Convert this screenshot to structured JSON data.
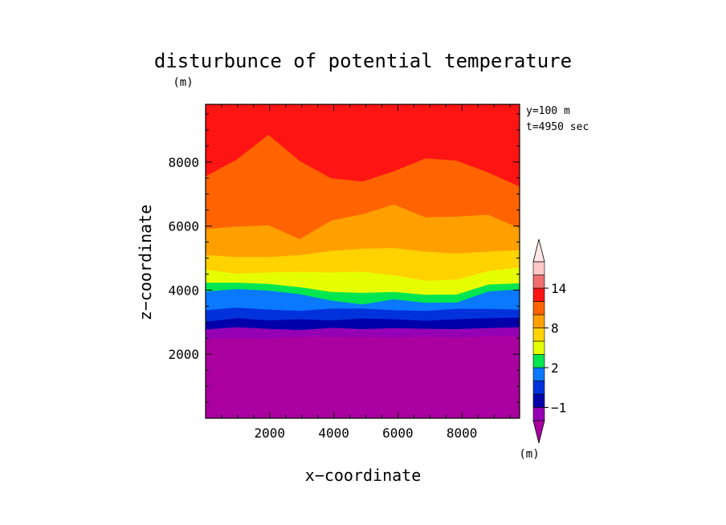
{
  "chart_data": {
    "type": "heatmap",
    "title": "disturbunce of potential temperature",
    "title_unit": "(m)",
    "xlabel": "x−coordinate",
    "ylabel": "z−coordinate",
    "annotations": [
      "y=100 m",
      "t=4950 sec"
    ],
    "xlim": [
      0,
      9800
    ],
    "ylim": [
      0,
      9800
    ],
    "xticks": [
      2000,
      4000,
      6000,
      8000
    ],
    "xtick_labels": [
      "2000",
      "4000",
      "6000",
      "8000"
    ],
    "yticks": [
      2000,
      4000,
      6000,
      8000
    ],
    "ytick_labels": [
      "2000",
      "4000",
      "6000",
      "8000"
    ],
    "colorbar": {
      "unit": "(m)",
      "levels": [
        -2,
        -1,
        0,
        1,
        2,
        4,
        6,
        8,
        10,
        12,
        14,
        16
      ],
      "tick_labels": [
        {
          "value": -1,
          "label": "−1"
        },
        {
          "value": 2,
          "label": "2"
        },
        {
          "value": 8,
          "label": "8"
        },
        {
          "value": 14,
          "label": "14"
        }
      ],
      "colors": [
        "#9600b4",
        "#0000aa",
        "#0032dc",
        "#0a78ff",
        "#00e650",
        "#e6ff00",
        "#ffd200",
        "#ffa000",
        "#ff6400",
        "#ff1414",
        "#f06e6e",
        "#ffc8c8"
      ],
      "under_color": "#aa00a0",
      "over_color": "#ffe6e6"
    },
    "contour_bands": [
      {
        "upper_level": -2,
        "color": "#aa00a0",
        "boundary_z": [
          2480,
          2520,
          2500,
          2560,
          2540,
          2550,
          2520,
          2560,
          2530,
          2570,
          2560
        ]
      },
      {
        "upper_level": -1,
        "color": "#9600b4",
        "boundary_z": [
          2780,
          2850,
          2800,
          2760,
          2830,
          2790,
          2820,
          2800,
          2790,
          2820,
          2850
        ]
      },
      {
        "upper_level": 0,
        "color": "#0000aa",
        "boundary_z": [
          3020,
          3130,
          3060,
          3100,
          3060,
          3120,
          3100,
          3050,
          3100,
          3130,
          3150
        ]
      },
      {
        "upper_level": 1,
        "color": "#0032dc",
        "boundary_z": [
          3380,
          3460,
          3400,
          3360,
          3430,
          3430,
          3380,
          3360,
          3420,
          3420,
          3400
        ]
      },
      {
        "upper_level": 2,
        "color": "#0a78ff",
        "boundary_z": [
          3960,
          4040,
          3990,
          3880,
          3680,
          3560,
          3720,
          3610,
          3620,
          3960,
          4030
        ]
      },
      {
        "upper_level": 4,
        "color": "#00e650",
        "boundary_z": [
          4240,
          4240,
          4200,
          4100,
          3950,
          3920,
          3950,
          3860,
          3870,
          4180,
          4220
        ]
      },
      {
        "upper_level": 6,
        "color": "#e6ff00",
        "boundary_z": [
          4650,
          4520,
          4560,
          4580,
          4560,
          4580,
          4470,
          4300,
          4330,
          4600,
          4720
        ]
      },
      {
        "upper_level": 8,
        "color": "#ffd200",
        "boundary_z": [
          5100,
          5040,
          5040,
          5100,
          5230,
          5300,
          5320,
          5210,
          5150,
          5210,
          5250
        ]
      },
      {
        "upper_level": 10,
        "color": "#ffa000",
        "boundary_z": [
          5920,
          5990,
          6030,
          5600,
          6180,
          6380,
          6680,
          6280,
          6300,
          6360,
          5940
        ]
      },
      {
        "upper_level": 12,
        "color": "#ff6400",
        "boundary_z": [
          7560,
          8090,
          8860,
          8040,
          7500,
          7400,
          7720,
          8120,
          8050,
          7680,
          7240
        ]
      },
      {
        "upper_level": 16,
        "color": "#ff1414",
        "boundary_z": [
          9800,
          9800,
          9800,
          9800,
          9800,
          9800,
          9800,
          9800,
          9800,
          9800,
          9800
        ]
      }
    ],
    "band_x": [
      0,
      980,
      1960,
      2940,
      3920,
      4900,
      5880,
      6860,
      7840,
      8820,
      9800
    ]
  }
}
